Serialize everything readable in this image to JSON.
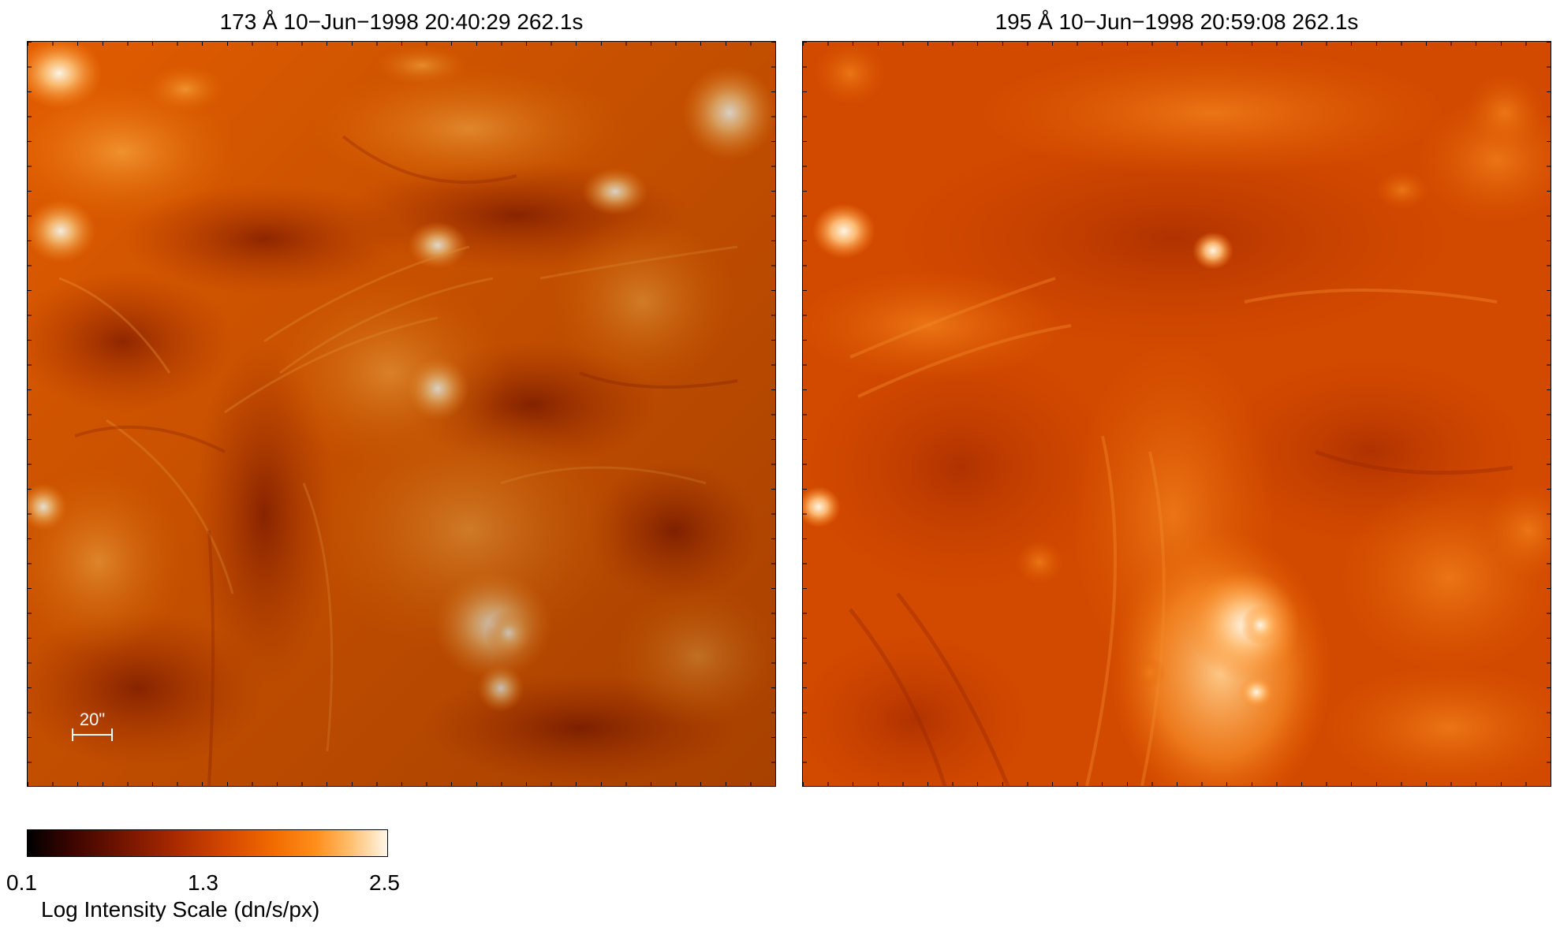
{
  "panels": [
    {
      "title": "173 Å 10−Jun−1998 20:40:29 262.1s",
      "base_color": "#e05a00"
    },
    {
      "title": "195 Å 10−Jun−1998 20:59:08 262.1s",
      "base_color": "#d44a00"
    }
  ],
  "scale_bar": {
    "label": "20\""
  },
  "colorbar": {
    "ticks": [
      "0.1",
      "1.3",
      "2.5"
    ],
    "label": "Log Intensity Scale (dn/s/px)",
    "colors": [
      "#000000",
      "#6e1200",
      "#d44800",
      "#ff8e1a",
      "#fff6e8"
    ]
  }
}
